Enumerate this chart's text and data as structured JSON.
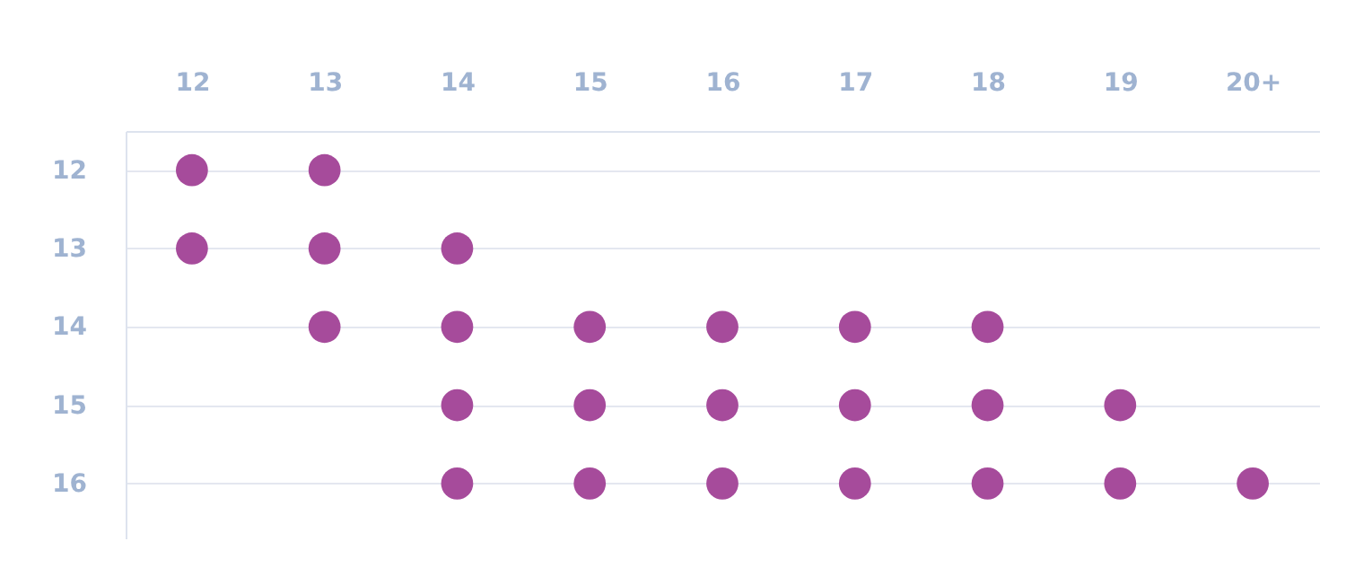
{
  "chart_data": {
    "type": "scatter",
    "categories": [
      "12",
      "13",
      "14",
      "15",
      "16",
      "17",
      "18",
      "19",
      "20+"
    ],
    "series": [
      {
        "color": "#a64b9b",
        "x": [
          "12",
          "13",
          "12",
          "13",
          "14",
          "13",
          "14",
          "15",
          "16",
          "17",
          "18",
          "14",
          "15",
          "16",
          "17",
          "18",
          "19",
          "14",
          "15",
          "16",
          "17",
          "18",
          "19",
          "20+"
        ],
        "values": [
          12,
          12,
          13,
          13,
          13,
          14,
          14,
          14,
          14,
          14,
          14,
          15,
          15,
          15,
          15,
          15,
          15,
          16,
          16,
          16,
          16,
          16,
          16,
          16
        ]
      }
    ],
    "ylim": [
      16.7,
      11.5
    ],
    "yticks": [
      12,
      13,
      14,
      15,
      16
    ],
    "grid": "y",
    "marker": "circle"
  }
}
